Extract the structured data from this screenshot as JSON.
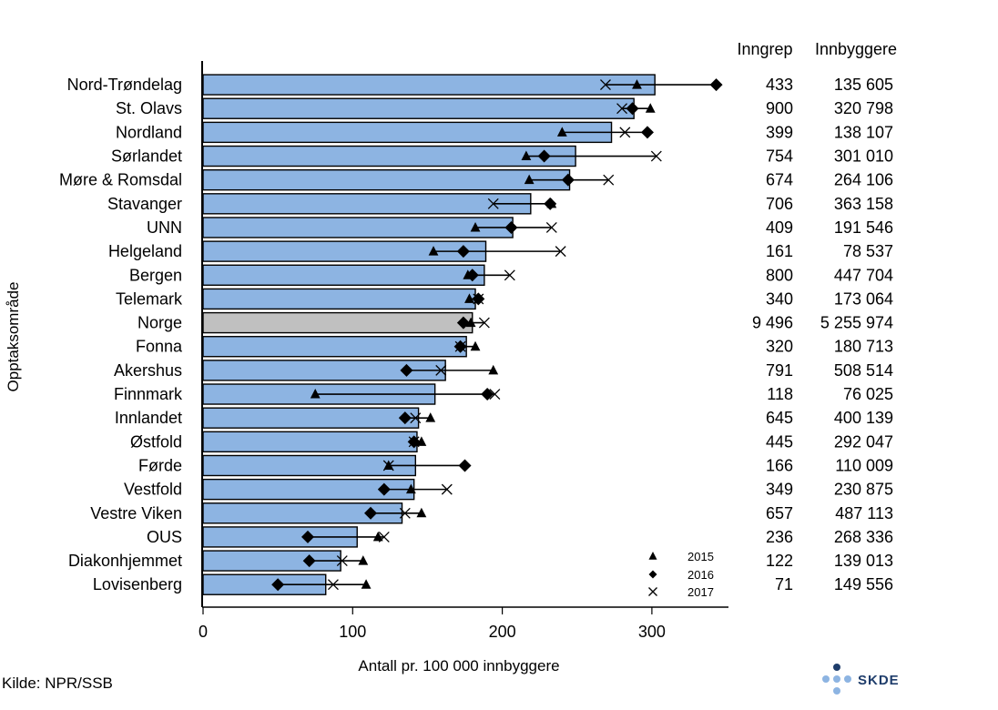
{
  "source_text": "Kilde: NPR/SSB",
  "logo_text": "SKDE",
  "table": {
    "header_inngrep": "Inngrep",
    "header_innbyggere": "Innbyggere"
  },
  "colors": {
    "bar": "#8db4e2",
    "highlight_bar": "#c0c0c0",
    "edge": "#000000",
    "logo_dark": "#1f3d6b",
    "logo_light": "#8db4e2"
  },
  "chart_data": {
    "type": "bar",
    "orientation": "horizontal",
    "title": "",
    "xlabel": "Antall pr. 100 000 innbyggere",
    "ylabel": "Opptaksområde",
    "xlim": [
      0,
      350
    ],
    "xticks": [
      "0",
      "100",
      "200",
      "300"
    ],
    "grid": false,
    "legend_position": "bottom-right",
    "legend": [
      {
        "symbol": "triangle",
        "label": "2015"
      },
      {
        "symbol": "diamond",
        "label": "2016"
      },
      {
        "symbol": "x",
        "label": "2017"
      }
    ],
    "highlight_category": "Norge",
    "rows": [
      {
        "label": "Nord-Trøndelag",
        "value": 302,
        "y2015": 290,
        "y2016": 343,
        "y2017": 269,
        "inngrep": "433",
        "innbyggere": "135 605"
      },
      {
        "label": "St. Olavs",
        "value": 288,
        "y2015": 299,
        "y2016": 287,
        "y2017": 280,
        "inngrep": "900",
        "innbyggere": "320 798"
      },
      {
        "label": "Nordland",
        "value": 273,
        "y2015": 240,
        "y2016": 297,
        "y2017": 282,
        "inngrep": "399",
        "innbyggere": "138 107"
      },
      {
        "label": "Sørlandet",
        "value": 249,
        "y2015": 216,
        "y2016": 228,
        "y2017": 303,
        "inngrep": "754",
        "innbyggere": "301 010"
      },
      {
        "label": "Møre & Romsdal",
        "value": 245,
        "y2015": 218,
        "y2016": 244,
        "y2017": 271,
        "inngrep": "674",
        "innbyggere": "264 106"
      },
      {
        "label": "Stavanger",
        "value": 219,
        "y2015": 233,
        "y2016": 232,
        "y2017": 194,
        "inngrep": "706",
        "innbyggere": "363 158"
      },
      {
        "label": "UNN",
        "value": 207,
        "y2015": 182,
        "y2016": 206,
        "y2017": 233,
        "inngrep": "409",
        "innbyggere": "191 546"
      },
      {
        "label": "Helgeland",
        "value": 189,
        "y2015": 154,
        "y2016": 174,
        "y2017": 239,
        "inngrep": "161",
        "innbyggere": "78 537"
      },
      {
        "label": "Bergen",
        "value": 188,
        "y2015": 177,
        "y2016": 180,
        "y2017": 205,
        "inngrep": "800",
        "innbyggere": "447 704"
      },
      {
        "label": "Telemark",
        "value": 182,
        "y2015": 178,
        "y2016": 184,
        "y2017": 184,
        "inngrep": "340",
        "innbyggere": "173 064"
      },
      {
        "label": "Norge",
        "value": 180,
        "y2015": 179,
        "y2016": 174,
        "y2017": 188,
        "inngrep": "9 496",
        "innbyggere": "5 255 974"
      },
      {
        "label": "Fonna",
        "value": 176,
        "y2015": 182,
        "y2016": 172,
        "y2017": 172,
        "inngrep": "320",
        "innbyggere": "180 713"
      },
      {
        "label": "Akershus",
        "value": 162,
        "y2015": 194,
        "y2016": 136,
        "y2017": 159,
        "inngrep": "791",
        "innbyggere": "508 514"
      },
      {
        "label": "Finnmark",
        "value": 155,
        "y2015": 75,
        "y2016": 190,
        "y2017": 195,
        "inngrep": "118",
        "innbyggere": "76 025"
      },
      {
        "label": "Innlandet",
        "value": 144,
        "y2015": 152,
        "y2016": 135,
        "y2017": 142,
        "inngrep": "645",
        "innbyggere": "400 139"
      },
      {
        "label": "Østfold",
        "value": 143,
        "y2015": 146,
        "y2016": 141,
        "y2017": 141,
        "inngrep": "445",
        "innbyggere": "292 047"
      },
      {
        "label": "Førde",
        "value": 142,
        "y2015": 124,
        "y2016": 175,
        "y2017": 124,
        "inngrep": "166",
        "innbyggere": "110 009"
      },
      {
        "label": "Vestfold",
        "value": 141,
        "y2015": 139,
        "y2016": 121,
        "y2017": 163,
        "inngrep": "349",
        "innbyggere": "230 875"
      },
      {
        "label": "Vestre Viken",
        "value": 133,
        "y2015": 146,
        "y2016": 112,
        "y2017": 135,
        "inngrep": "657",
        "innbyggere": "487 113"
      },
      {
        "label": "OUS",
        "value": 103,
        "y2015": 117,
        "y2016": 70,
        "y2017": 121,
        "inngrep": "236",
        "innbyggere": "268 336"
      },
      {
        "label": "Diakonhjemmet",
        "value": 92,
        "y2015": 107,
        "y2016": 71,
        "y2017": 93,
        "inngrep": "122",
        "innbyggere": "139 013"
      },
      {
        "label": "Lovisenberg",
        "value": 82,
        "y2015": 109,
        "y2016": 50,
        "y2017": 87,
        "inngrep": "71",
        "innbyggere": "149 556"
      }
    ]
  }
}
